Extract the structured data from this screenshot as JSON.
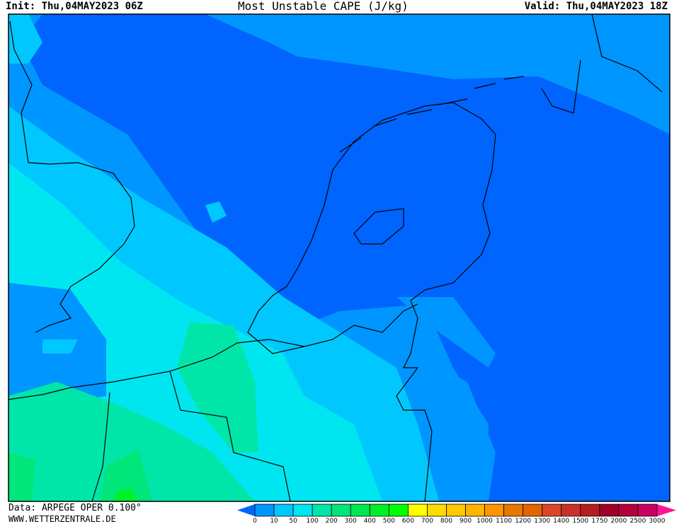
{
  "header": {
    "init": "Init: Thu,04MAY2023 06Z",
    "title": "Most Unstable CAPE (J/kg)",
    "valid": "Valid: Thu,04MAY2023 18Z"
  },
  "footer": {
    "data_source": "Data: ARPEGE OPER 0.100°",
    "website": "WWW.WETTERZENTRALE.DE"
  },
  "legend": {
    "labels": [
      "0",
      "10",
      "50",
      "100",
      "200",
      "300",
      "400",
      "500",
      "600",
      "700",
      "800",
      "900",
      "1000",
      "1100",
      "1200",
      "1300",
      "1400",
      "1500",
      "1750",
      "2000",
      "2500",
      "3000"
    ],
    "colors": [
      "#0096ff",
      "#00c8ff",
      "#00e6f0",
      "#00e6a8",
      "#00e67a",
      "#00e650",
      "#00f028",
      "#00ff00",
      "#ffff00",
      "#ffdc00",
      "#ffc800",
      "#ffb400",
      "#ff9600",
      "#e67800",
      "#e66400",
      "#dc4628",
      "#c83228",
      "#b41e1e",
      "#a00028",
      "#b4003c",
      "#c80064"
    ],
    "below_color": "#0064ff",
    "above_color": "#ff1493"
  },
  "map": {
    "field_colors": {
      "lt0": "#0064ff",
      "c0_10": "#0096ff",
      "c10_50": "#00c8ff",
      "c50_100": "#00e6f0",
      "c100_200": "#00e6a8",
      "c200_300": "#00e67a",
      "c400_500": "#00f028"
    }
  }
}
